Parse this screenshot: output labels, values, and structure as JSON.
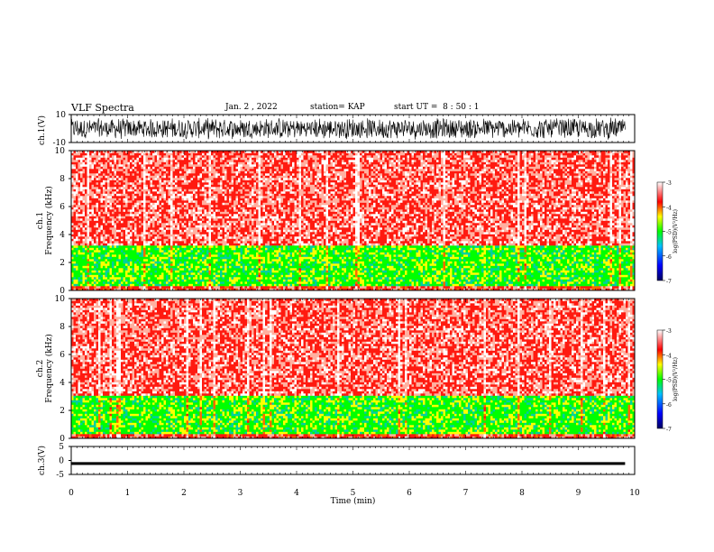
{
  "header": {
    "title": "VLF Spectra",
    "date": "Jan. 2 , 2022",
    "station": "station= KAP",
    "start": "start UT =  8 : 50 : 1"
  },
  "colors": {
    "spectro_low": "#0000ff",
    "spectro_mid": "#00ff00",
    "spectro_high": "#ff0000",
    "spectro_max": "#ffffff",
    "trace": "#000000"
  },
  "chart_data": [
    {
      "type": "line",
      "ylabel": "ch.1(V)",
      "ylim": [
        -10,
        10
      ],
      "ytick_labels": [
        "10",
        "-10"
      ],
      "xlim": [
        0,
        10
      ],
      "note": "broadband waveform, mostly spanning ±8 V"
    },
    {
      "type": "heatmap",
      "ylabel": "ch.1\nFrequency (kHz)",
      "ylim": [
        0,
        10
      ],
      "ytick_labels": [
        "0",
        "2",
        "4",
        "6",
        "8",
        "10"
      ],
      "xlim": [
        0,
        10
      ],
      "colorbar": {
        "label": "log(PSD)(V²/Hz)",
        "range": [
          -7,
          -3
        ],
        "tick_labels": [
          "-3",
          "-4",
          "-5",
          "-6",
          "-7"
        ]
      },
      "bands_kHz": [
        {
          "from": 0,
          "to": 0.3,
          "level": -3.8
        },
        {
          "from": 0.3,
          "to": 3.2,
          "level": -5.0
        },
        {
          "from": 3.2,
          "to": 10,
          "level": -3.6
        }
      ]
    },
    {
      "type": "heatmap",
      "ylabel": "ch.2\nFrequency (kHz)",
      "ylim": [
        0,
        10
      ],
      "ytick_labels": [
        "0",
        "2",
        "4",
        "6",
        "8",
        "10"
      ],
      "xlim": [
        0,
        10
      ],
      "colorbar": {
        "label": "log(PSD)(V²/Hz)",
        "range": [
          -7,
          -3
        ],
        "tick_labels": [
          "-3",
          "-4",
          "-5",
          "-6",
          "-7"
        ]
      },
      "bands_kHz": [
        {
          "from": 0,
          "to": 0.3,
          "level": -3.8
        },
        {
          "from": 0.3,
          "to": 3.0,
          "level": -5.0
        },
        {
          "from": 3.0,
          "to": 10,
          "level": -3.6
        }
      ]
    },
    {
      "type": "line",
      "ylabel": "ch.3(V)",
      "ylim": [
        -5,
        5
      ],
      "ytick_labels": [
        "5",
        "0",
        "-5"
      ],
      "xlim": [
        0,
        10
      ],
      "xlabel": "Time (min)",
      "xtick_labels": [
        "0",
        "1",
        "2",
        "3",
        "4",
        "5",
        "6",
        "7",
        "8",
        "9",
        "10"
      ],
      "note": "near-constant trace at about -1 V"
    }
  ]
}
